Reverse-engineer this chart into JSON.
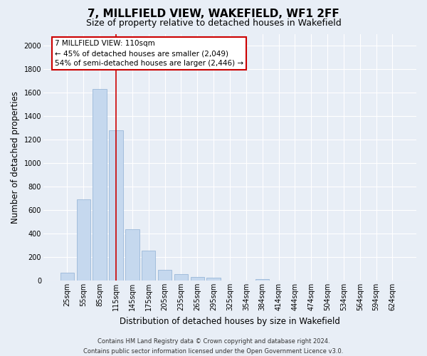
{
  "title": "7, MILLFIELD VIEW, WAKEFIELD, WF1 2FF",
  "subtitle": "Size of property relative to detached houses in Wakefield",
  "xlabel": "Distribution of detached houses by size in Wakefield",
  "ylabel": "Number of detached properties",
  "bar_labels": [
    "25sqm",
    "55sqm",
    "85sqm",
    "115sqm",
    "145sqm",
    "175sqm",
    "205sqm",
    "235sqm",
    "265sqm",
    "295sqm",
    "325sqm",
    "354sqm",
    "384sqm",
    "414sqm",
    "444sqm",
    "474sqm",
    "504sqm",
    "534sqm",
    "564sqm",
    "594sqm",
    "624sqm"
  ],
  "bar_values": [
    65,
    690,
    1630,
    1280,
    435,
    255,
    90,
    55,
    30,
    25,
    0,
    0,
    15,
    0,
    0,
    0,
    0,
    0,
    0,
    0,
    0
  ],
  "bar_color": "#c5d8ee",
  "bar_edge_color": "#9ab8d8",
  "vline_x_index": 3,
  "vline_color": "#cc0000",
  "ylim": [
    0,
    2100
  ],
  "yticks": [
    0,
    200,
    400,
    600,
    800,
    1000,
    1200,
    1400,
    1600,
    1800,
    2000
  ],
  "annotation_title": "7 MILLFIELD VIEW: 110sqm",
  "annotation_line1": "← 45% of detached houses are smaller (2,049)",
  "annotation_line2": "54% of semi-detached houses are larger (2,446) →",
  "annotation_box_facecolor": "#ffffff",
  "annotation_box_edgecolor": "#cc0000",
  "footer_line1": "Contains HM Land Registry data © Crown copyright and database right 2024.",
  "footer_line2": "Contains public sector information licensed under the Open Government Licence v3.0.",
  "bg_color": "#e8eef6",
  "plot_bg_color": "#e8eef6",
  "grid_color": "#ffffff",
  "title_fontsize": 11,
  "subtitle_fontsize": 9,
  "axis_label_fontsize": 8.5,
  "tick_fontsize": 7,
  "annotation_fontsize": 7.5,
  "footer_fontsize": 6
}
